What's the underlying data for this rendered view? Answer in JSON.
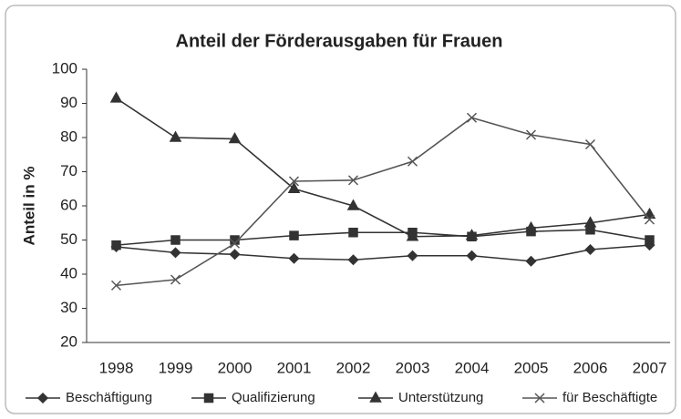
{
  "chart_data": {
    "type": "line",
    "title": "Anteil der Förderausgaben für Frauen",
    "y_label": "Anteil in %",
    "categories": [
      "1998",
      "1999",
      "2000",
      "2001",
      "2002",
      "2003",
      "2004",
      "2005",
      "2006",
      "2007"
    ],
    "series": [
      {
        "name": "Beschäftigung",
        "color": "#333333",
        "marker": "diamond",
        "values": [
          48,
          46.3,
          45.8,
          44.6,
          44.2,
          45.4,
          45.4,
          43.8,
          47.2,
          48.5
        ]
      },
      {
        "name": "Qualifizierung",
        "color": "#333333",
        "marker": "square",
        "values": [
          48.5,
          50,
          50,
          51.3,
          52.2,
          52.2,
          51,
          52.5,
          53,
          50
        ]
      },
      {
        "name": "Unterstützung",
        "color": "#333333",
        "marker": "triangle",
        "values": [
          91.5,
          80,
          79.6,
          65,
          60,
          51,
          51.3,
          53.5,
          55,
          57.5
        ]
      },
      {
        "name": "für Beschäftigte",
        "color": "#555555",
        "marker": "x",
        "values": [
          36.7,
          38.4,
          49,
          67.2,
          67.5,
          73,
          85.8,
          80.8,
          78,
          56
        ]
      }
    ],
    "ylim": [
      20,
      100
    ],
    "yticks": [
      20,
      30,
      40,
      50,
      60,
      70,
      80,
      90,
      100
    ],
    "grid": false,
    "legend": "bottom"
  }
}
